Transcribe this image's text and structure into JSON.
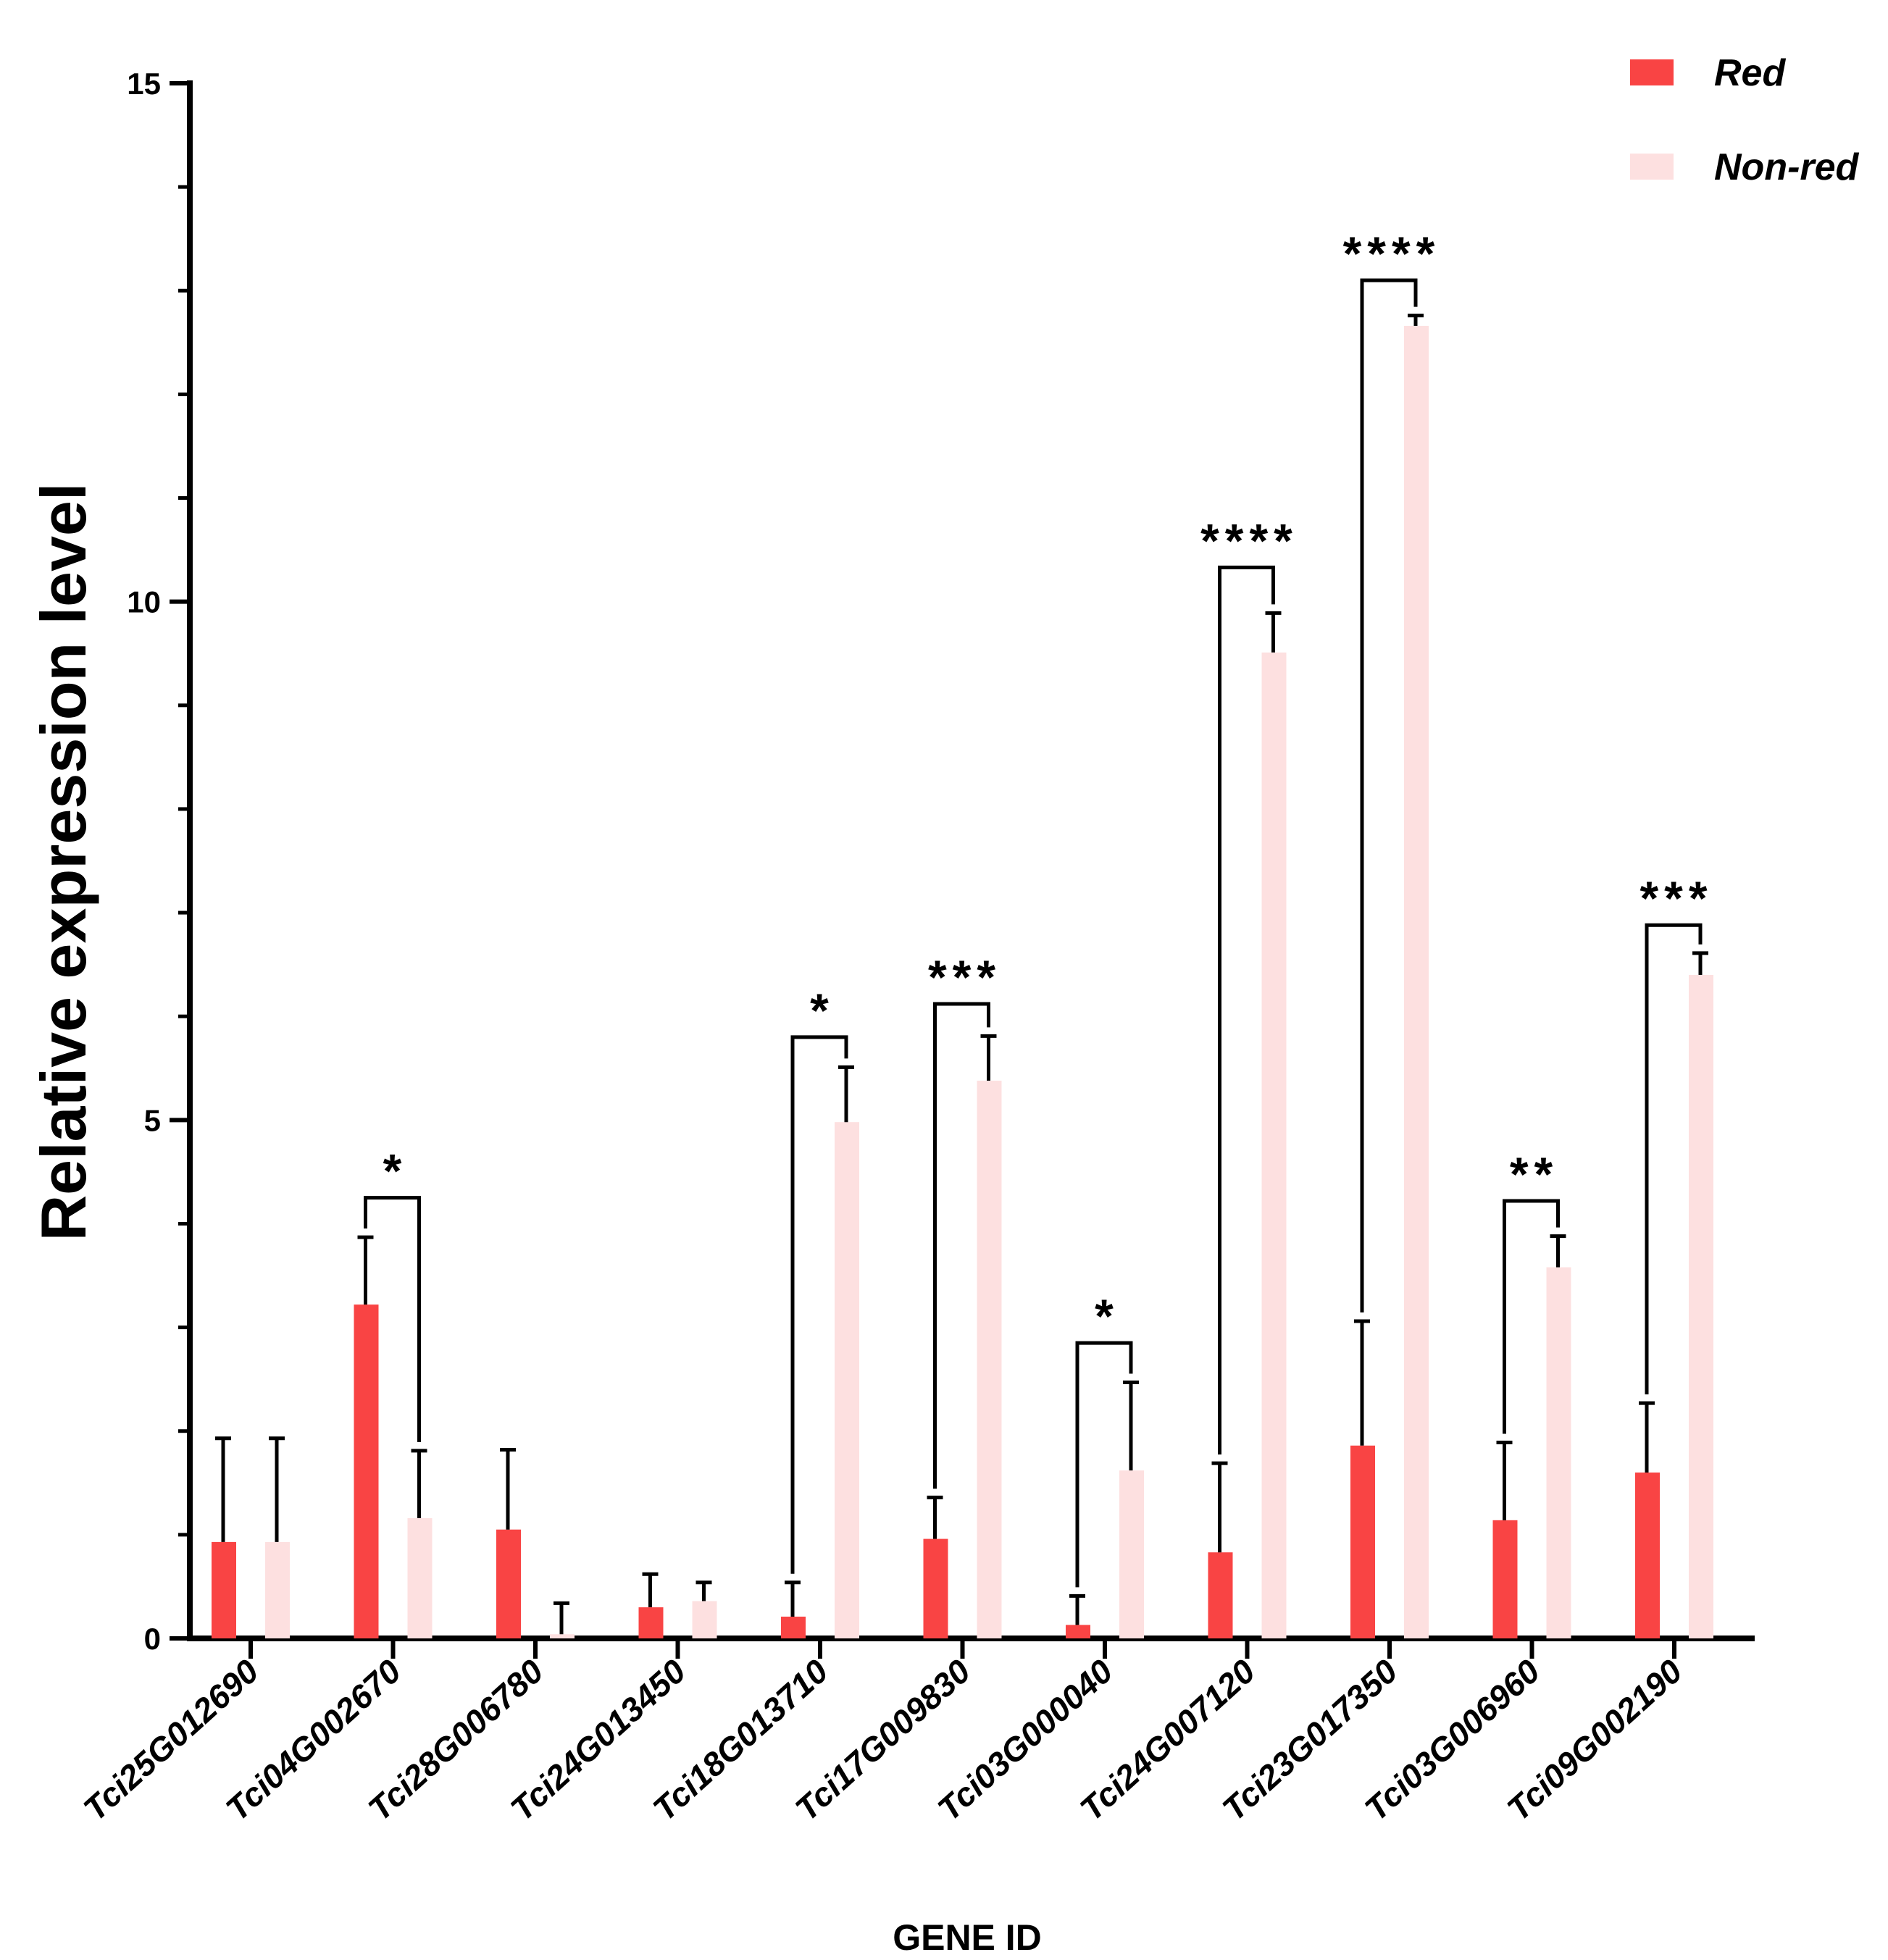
{
  "chart_data": {
    "type": "bar",
    "title": "",
    "xlabel": "GENE ID",
    "ylabel": "Relative expression level",
    "ylim": [
      0,
      15
    ],
    "yticks": [
      0,
      5,
      10,
      15
    ],
    "ytick_labels": [
      "0",
      "5",
      "10",
      "15"
    ],
    "minor_step": 1,
    "legend_position": "top-right",
    "categories": [
      "Tci25G012690",
      "Tci04G002670",
      "Tci28G006780",
      "Tci24G013450",
      "Tci18G013710",
      "Tci17G009830",
      "Tci03G000040",
      "Tci24G007120",
      "Tci23G017350",
      "Tci03G006960",
      "Tci09G002190"
    ],
    "series": [
      {
        "name": "Red",
        "color": "#f94444",
        "values": [
          0.93,
          3.22,
          1.05,
          0.3,
          0.21,
          0.96,
          0.13,
          0.83,
          1.86,
          1.14,
          1.6
        ],
        "errors": [
          1.0,
          0.65,
          0.77,
          0.32,
          0.33,
          0.4,
          0.28,
          0.86,
          1.2,
          0.75,
          0.67
        ]
      },
      {
        "name": "Non-red",
        "color": "#fde0e0",
        "values": [
          0.93,
          1.16,
          0.04,
          0.36,
          4.98,
          5.38,
          1.62,
          9.51,
          12.66,
          3.58,
          6.4
        ],
        "errors": [
          1.0,
          0.65,
          0.3,
          0.18,
          0.53,
          0.43,
          0.85,
          0.38,
          0.1,
          0.3,
          0.21
        ]
      }
    ],
    "significance": [
      {
        "category": "Tci04G002670",
        "label": "*",
        "level": 4.25
      },
      {
        "category": "Tci18G013710",
        "label": "*",
        "level": 5.8
      },
      {
        "category": "Tci17G009830",
        "label": "***",
        "level": 6.12
      },
      {
        "category": "Tci03G000040",
        "label": "*",
        "level": 2.85
      },
      {
        "category": "Tci24G007120",
        "label": "****",
        "level": 10.33
      },
      {
        "category": "Tci23G017350",
        "label": "****",
        "level": 13.1
      },
      {
        "category": "Tci03G006960",
        "label": "**",
        "level": 4.22
      },
      {
        "category": "Tci09G002190",
        "label": "***",
        "level": 6.88
      }
    ]
  }
}
